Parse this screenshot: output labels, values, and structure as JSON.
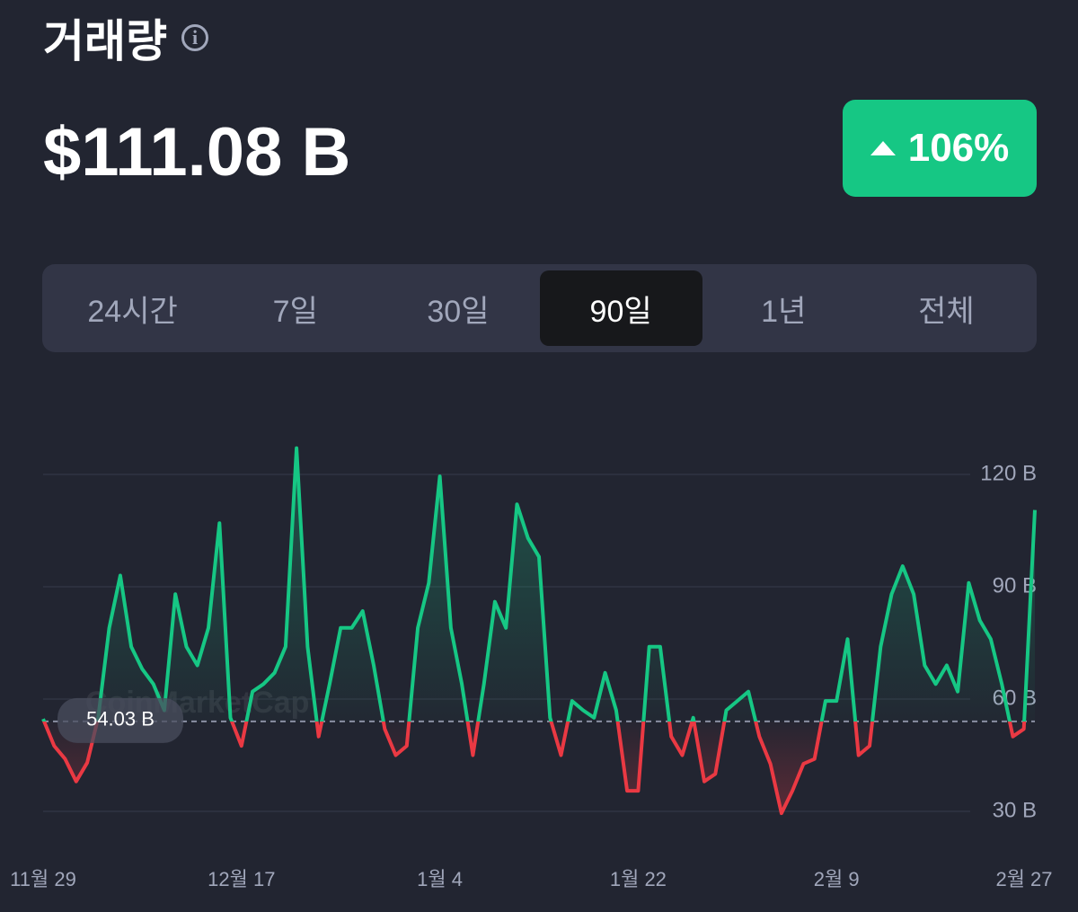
{
  "header": {
    "title": "거래량",
    "value": "$111.08 B",
    "change": "106%"
  },
  "tabs": {
    "items": [
      "24시간",
      "7일",
      "30일",
      "90일",
      "1년",
      "전체"
    ],
    "active": 3
  },
  "watermark": "CoinMarketCap",
  "chart_data": {
    "type": "line",
    "categories": [
      "11월 29",
      null,
      null,
      null,
      null,
      null,
      null,
      null,
      null,
      null,
      null,
      null,
      null,
      null,
      null,
      null,
      null,
      null,
      "12월 17",
      null,
      null,
      null,
      null,
      null,
      null,
      null,
      null,
      null,
      null,
      null,
      null,
      null,
      null,
      null,
      null,
      null,
      "1월 4",
      null,
      null,
      null,
      null,
      null,
      null,
      null,
      null,
      null,
      null,
      null,
      null,
      null,
      null,
      null,
      null,
      null,
      "1월 22",
      null,
      null,
      null,
      null,
      null,
      null,
      null,
      null,
      null,
      null,
      null,
      null,
      null,
      null,
      null,
      null,
      null,
      "2월 9",
      null,
      null,
      null,
      null,
      null,
      null,
      null,
      null,
      null,
      null,
      null,
      null,
      null,
      null,
      null,
      null,
      null,
      "2월 27"
    ],
    "series": [
      {
        "name": "거래량",
        "values": [
          54.7,
          47.5,
          44,
          38,
          43,
          55,
          79,
          93,
          74,
          68,
          64,
          57,
          88,
          74,
          69,
          79,
          107,
          55,
          47.5,
          62,
          64,
          67,
          74,
          127,
          74,
          50,
          64,
          79,
          79,
          83.5,
          69,
          52,
          45,
          47.5,
          79,
          91,
          119.5,
          79,
          64,
          45,
          64,
          86,
          79,
          112,
          103,
          98,
          55,
          45,
          59.5,
          57,
          55,
          67,
          57,
          35.5,
          35.5,
          74,
          74,
          50,
          45,
          55,
          38,
          40,
          57,
          59.5,
          62,
          50,
          42.7,
          29.5,
          35.5,
          42.7,
          44,
          59.5,
          59.5,
          76,
          45,
          47.5,
          74,
          88,
          95.5,
          88,
          69,
          64,
          69,
          62,
          91,
          81,
          76,
          64,
          50,
          52,
          110.5
        ]
      }
    ],
    "baseline": {
      "value": 54.03,
      "label": "54.03 B"
    },
    "up_color": "#16c784",
    "down_color": "#ea3943",
    "ylim": [
      24,
      138
    ],
    "yticks": [
      {
        "value": 30,
        "label": "30 B"
      },
      {
        "value": 60,
        "label": "60 B"
      },
      {
        "value": 90,
        "label": "90 B"
      },
      {
        "value": 120,
        "label": "120 B"
      }
    ],
    "grid": true
  }
}
